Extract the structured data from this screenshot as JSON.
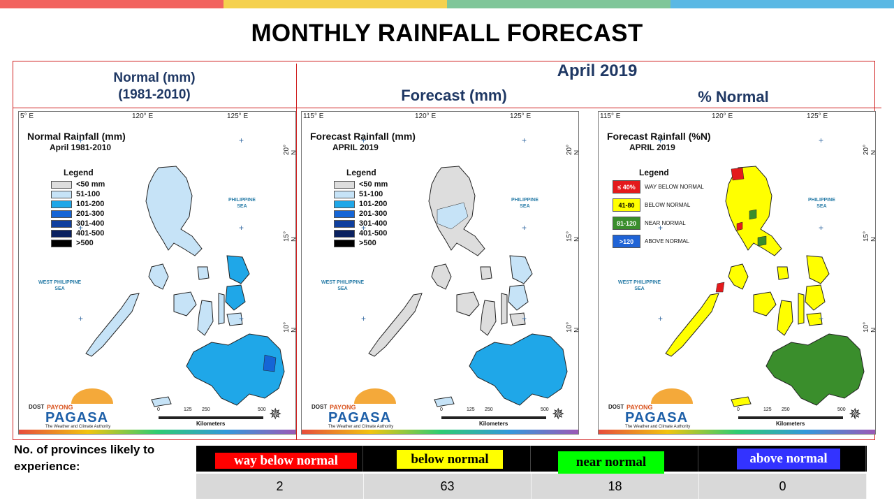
{
  "top_bar_colors": [
    "#f2635f",
    "#f5d14e",
    "#7fc699",
    "#5ab8e4"
  ],
  "page_title": "MONTHLY RAINFALL FORECAST",
  "headers": {
    "normal_line1": "Normal (mm)",
    "normal_line2": "(1981-2010)",
    "month": "April 2019",
    "forecast": "Forecast (mm)",
    "percent": "% Normal"
  },
  "maps": {
    "normal": {
      "title": "Normal Rainfall (mm)",
      "subtitle": "April 1981-2010",
      "legend_title": "Legend",
      "legend": [
        {
          "label": "<50 mm",
          "color": "#dddddd"
        },
        {
          "label": "51-100",
          "color": "#c6e3f7"
        },
        {
          "label": "101-200",
          "color": "#1fa7e8"
        },
        {
          "label": "201-300",
          "color": "#1565d6"
        },
        {
          "label": "301-400",
          "color": "#0f3f9e"
        },
        {
          "label": "401-500",
          "color": "#0a2160"
        },
        {
          "label": ">500",
          "color": "#000000"
        }
      ],
      "coord_top_left": "5° E",
      "coord_top_mid": "120° E",
      "coord_top_right": "125° E",
      "lat_20": "20° N",
      "lat_15": "15° N",
      "lat_10": "10° N",
      "sea_east": "PHILIPPINE\nSEA",
      "sea_west": "WEST PHILIPPINE\nSEA"
    },
    "forecast": {
      "title": "Forecast Rainfall (mm)",
      "subtitle": "APRIL 2019",
      "legend_title": "Legend",
      "legend": [
        {
          "label": "<50 mm",
          "color": "#dddddd"
        },
        {
          "label": "51-100",
          "color": "#c6e3f7"
        },
        {
          "label": "101-200",
          "color": "#1fa7e8"
        },
        {
          "label": "201-300",
          "color": "#1565d6"
        },
        {
          "label": "301-400",
          "color": "#0f3f9e"
        },
        {
          "label": "401-500",
          "color": "#0a2160"
        },
        {
          "label": ">500",
          "color": "#000000"
        }
      ],
      "coord_top_left": "115° E",
      "coord_top_mid": "120° E",
      "coord_top_right": "125° E",
      "lat_20": "20° N",
      "lat_15": "15° N",
      "lat_10": "10° N",
      "sea_east": "PHILIPPINE\nSEA",
      "sea_west": "WEST PHILIPPINE\nSEA"
    },
    "percent": {
      "title": "Forecast Rainfall (%N)",
      "subtitle": "APRIL 2019",
      "legend_title": "Legend",
      "legend": [
        {
          "box": "≤ 40%",
          "label": "WAY BELOW NORMAL",
          "color": "#e41a1c",
          "text_color": "#ffffff"
        },
        {
          "box": "41-80",
          "label": "BELOW NORMAL",
          "color": "#ffff00",
          "text_color": "#000000"
        },
        {
          "box": "81-120",
          "label": "NEAR NORMAL",
          "color": "#3a8e2c",
          "text_color": "#ffffff"
        },
        {
          "box": ">120",
          "label": "ABOVE NORMAL",
          "color": "#1f63d6",
          "text_color": "#ffffff"
        }
      ],
      "coord_top_left": "115° E",
      "coord_top_mid": "120° E",
      "coord_top_right": "125° E",
      "lat_20": "20° N",
      "lat_15": "15° N",
      "lat_10": "10° N",
      "sea_east": "PHILIPPINE\nSEA",
      "sea_west": "WEST PHILIPPINE\nSEA"
    }
  },
  "logo": {
    "dost": "DOST",
    "payong": "PAYONG",
    "pagasa": "PAGASA",
    "tagline": "The Weather and Climate Authority"
  },
  "scale": {
    "ticks": [
      "0",
      "125",
      "250",
      "500"
    ],
    "unit": "Kilometers"
  },
  "provinces": {
    "label": "No. of provinces likely to experience:",
    "categories": [
      {
        "label": "way below normal",
        "bg": "#ff0000",
        "fg": "#ffffff",
        "value": "2"
      },
      {
        "label": "below normal",
        "bg": "#ffff00",
        "fg": "#000000",
        "value": "63"
      },
      {
        "label": "near normal",
        "bg": "#00ff00",
        "fg": "#000000",
        "value": "18"
      },
      {
        "label": "above normal",
        "bg": "#3333ff",
        "fg": "#ffffff",
        "value": "0"
      }
    ]
  }
}
